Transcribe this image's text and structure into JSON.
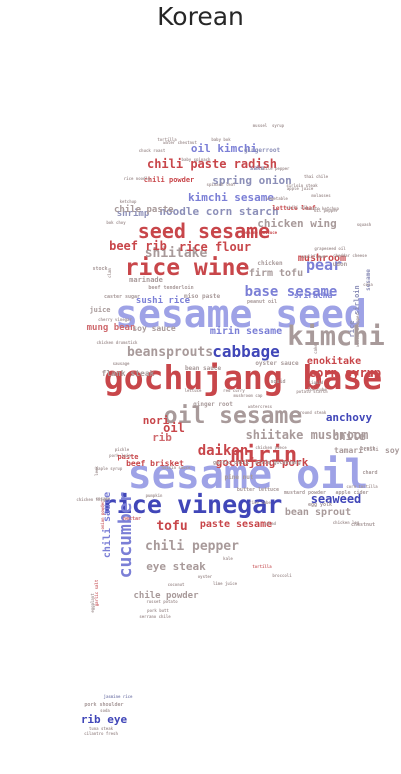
{
  "chart_data": {
    "type": "wordcloud",
    "title": "Korean",
    "colors": {
      "blue": "#7b7fd6",
      "red": "#c8464a",
      "gray": "#a89a9a",
      "dark_blue": "#4046b8",
      "light_blue": "#9ea2e6",
      "rose": "#cf6a6e",
      "slate": "#8c8fb8"
    },
    "words": [
      {
        "text": "sesame oil",
        "color": "light_blue",
        "weight": 100
      },
      {
        "text": "sesame seed",
        "color": "light_blue",
        "weight": 92
      },
      {
        "text": "gochujang base",
        "color": "red",
        "weight": 86
      },
      {
        "text": "rice vinegar",
        "color": "dark_blue",
        "weight": 68
      },
      {
        "text": "oil sesame",
        "color": "gray",
        "weight": 60
      },
      {
        "text": "rice wine",
        "color": "red",
        "weight": 58
      },
      {
        "text": "kimchi",
        "color": "gray",
        "weight": 56
      },
      {
        "text": "seed sesame",
        "color": "red",
        "weight": 50
      },
      {
        "text": "mirin",
        "color": "red",
        "weight": 50
      },
      {
        "text": "cucumber",
        "color": "blue",
        "weight": 44
      },
      {
        "text": "cabbage",
        "color": "dark_blue",
        "weight": 40
      },
      {
        "text": "base sesame",
        "color": "blue",
        "weight": 40
      },
      {
        "text": "beansprouts",
        "color": "gray",
        "weight": 36
      },
      {
        "text": "pear",
        "color": "blue",
        "weight": 38
      },
      {
        "text": "daikon",
        "color": "red",
        "weight": 34
      },
      {
        "text": "shiitake mushroom",
        "color": "gray",
        "weight": 33
      },
      {
        "text": "shiitake",
        "color": "gray",
        "weight": 33
      },
      {
        "text": "tofu",
        "color": "red",
        "weight": 32
      },
      {
        "text": "chili pepper",
        "color": "gray",
        "weight": 32
      },
      {
        "text": "beef rib",
        "color": "red",
        "weight": 31
      },
      {
        "text": "rice flour",
        "color": "red",
        "weight": 31
      },
      {
        "text": "corn syrup",
        "color": "red",
        "weight": 30
      },
      {
        "text": "gochujang pork",
        "color": "red",
        "weight": 30
      },
      {
        "text": "chili paste radish",
        "color": "red",
        "weight": 29
      },
      {
        "text": "seaweed",
        "color": "dark_blue",
        "weight": 29
      },
      {
        "text": "firm tofu",
        "color": "gray",
        "weight": 28
      },
      {
        "text": "noodle corn starch",
        "color": "slate",
        "weight": 27
      },
      {
        "text": "spring onion",
        "color": "slate",
        "weight": 27
      },
      {
        "text": "kimchi sesame",
        "color": "blue",
        "weight": 26
      },
      {
        "text": "oil kimchi",
        "color": "blue",
        "weight": 26
      },
      {
        "text": "mushroom",
        "color": "red",
        "weight": 26
      },
      {
        "text": "eye steak",
        "color": "gray",
        "weight": 26
      },
      {
        "text": "anchovy",
        "color": "dark_blue",
        "weight": 26
      },
      {
        "text": "rib eye",
        "color": "dark_blue",
        "weight": 25
      },
      {
        "text": "chicken wing",
        "color": "gray",
        "weight": 25
      },
      {
        "text": "enokitake",
        "color": "red",
        "weight": 24
      },
      {
        "text": "chili sauce",
        "color": "blue",
        "weight": 24
      },
      {
        "text": "mirin sesame",
        "color": "blue",
        "weight": 24
      },
      {
        "text": "oil",
        "color": "red",
        "weight": 24
      },
      {
        "text": "nori",
        "color": "red",
        "weight": 24
      },
      {
        "text": "rib",
        "color": "rose",
        "weight": 24
      },
      {
        "text": "chile",
        "color": "gray",
        "weight": 24
      },
      {
        "text": "bean sprout",
        "color": "gray",
        "weight": 22
      },
      {
        "text": "paste sesame",
        "color": "red",
        "weight": 22
      },
      {
        "text": "chile powder",
        "color": "gray",
        "weight": 22
      },
      {
        "text": "shrimp",
        "color": "slate",
        "weight": 22
      },
      {
        "text": "chile paste",
        "color": "gray",
        "weight": 20
      },
      {
        "text": "sushi rice",
        "color": "blue",
        "weight": 20
      },
      {
        "text": "mung bean",
        "color": "rose",
        "weight": 20
      },
      {
        "text": "beef brisket",
        "color": "red",
        "weight": 19
      },
      {
        "text": "flank steak",
        "color": "gray",
        "weight": 19
      },
      {
        "text": "soy sauce",
        "color": "gray",
        "weight": 19
      },
      {
        "text": "tamari",
        "color": "gray",
        "weight": 18
      },
      {
        "text": "soy",
        "color": "gray",
        "weight": 18
      },
      {
        "text": "sriracha",
        "color": "blue",
        "weight": 18
      },
      {
        "text": "marinade",
        "color": "gray",
        "weight": 17
      },
      {
        "text": "juice",
        "color": "gray",
        "weight": 17
      },
      {
        "text": "sirloin",
        "color": "slate",
        "weight": 16
      },
      {
        "text": "rice",
        "color": "slate",
        "weight": 16
      },
      {
        "text": "chili powder",
        "color": "red",
        "weight": 16
      },
      {
        "text": "paste",
        "color": "red",
        "weight": 16
      },
      {
        "text": "udon",
        "color": "gray",
        "weight": 14
      },
      {
        "text": "sesame",
        "color": "slate",
        "weight": 14
      },
      {
        "text": "lettuce leaf",
        "color": "red",
        "weight": 14
      },
      {
        "text": "chicken",
        "color": "gray",
        "weight": 14
      },
      {
        "text": "sake",
        "color": "slate",
        "weight": 14
      },
      {
        "text": "gingerroot",
        "color": "slate",
        "weight": 13
      },
      {
        "text": "oyster sauce",
        "color": "gray",
        "weight": 13
      },
      {
        "text": "bean sauce",
        "color": "gray",
        "weight": 13
      },
      {
        "text": "miso paste",
        "color": "gray",
        "weight": 13
      },
      {
        "text": "ginger root",
        "color": "gray",
        "weight": 13
      },
      {
        "text": "pine nut",
        "color": "gray",
        "weight": 13
      },
      {
        "text": "squid",
        "color": "gray",
        "weight": 12
      },
      {
        "text": "broth",
        "color": "gray",
        "weight": 12
      },
      {
        "text": "stock",
        "color": "gray",
        "weight": 12
      },
      {
        "text": "beef tenderloin",
        "color": "gray",
        "weight": 12
      },
      {
        "text": "caster sugar",
        "color": "gray",
        "weight": 12
      },
      {
        "text": "peanut oil",
        "color": "gray",
        "weight": 12
      },
      {
        "text": "garlic chili",
        "color": "gray",
        "weight": 12
      },
      {
        "text": "mirin gochujang",
        "color": "gray",
        "weight": 12
      },
      {
        "text": "butter lettuce",
        "color": "gray",
        "weight": 12
      },
      {
        "text": "mustard powder",
        "color": "gray",
        "weight": 12
      },
      {
        "text": "apple cider",
        "color": "gray",
        "weight": 12
      },
      {
        "text": "chestnut",
        "color": "gray",
        "weight": 12
      },
      {
        "text": "chard",
        "color": "gray",
        "weight": 12
      },
      {
        "text": "chili",
        "color": "gray",
        "weight": 12
      },
      {
        "text": "egg yolk",
        "color": "gray",
        "weight": 12
      },
      {
        "text": "nectar",
        "color": "rose",
        "weight": 12
      },
      {
        "text": "kale",
        "color": "gray",
        "weight": 11
      },
      {
        "text": "tortilla",
        "color": "rose",
        "weight": 11
      },
      {
        "text": "potato starch",
        "color": "gray",
        "weight": 11
      },
      {
        "text": "ketchup",
        "color": "gray",
        "weight": 11
      },
      {
        "text": "bok choy",
        "color": "gray",
        "weight": 11
      },
      {
        "text": "vegetable",
        "color": "gray",
        "weight": 11
      },
      {
        "text": "romaine lettuce",
        "color": "red",
        "weight": 11
      },
      {
        "text": "grapeseed oil",
        "color": "gray",
        "weight": 11
      },
      {
        "text": "water chestnut",
        "color": "gray",
        "weight": 10
      },
      {
        "text": "baby bok",
        "color": "gray",
        "weight": 10
      },
      {
        "text": "mussel",
        "color": "gray",
        "weight": 10
      },
      {
        "text": "syrup",
        "color": "gray",
        "weight": 10
      },
      {
        "text": "chuck roast",
        "color": "gray",
        "weight": 10
      },
      {
        "text": "rice noodle",
        "color": "gray",
        "weight": 10
      },
      {
        "text": "baby spinach",
        "color": "gray",
        "weight": 10
      },
      {
        "text": "chile pepper",
        "color": "gray",
        "weight": 10
      },
      {
        "text": "spinach leaf",
        "color": "gray",
        "weight": 10
      },
      {
        "text": "sirloin steak",
        "color": "gray",
        "weight": 10
      },
      {
        "text": "apple juice",
        "color": "gray",
        "weight": 10
      },
      {
        "text": "molasses",
        "color": "gray",
        "weight": 10
      },
      {
        "text": "thai chile",
        "color": "gray",
        "weight": 10
      },
      {
        "text": "chili oil",
        "color": "gray",
        "weight": 10
      },
      {
        "text": "oil pepper",
        "color": "gray",
        "weight": 10
      },
      {
        "text": "cauliflower",
        "color": "gray",
        "weight": 10
      },
      {
        "text": "cheddar cheese",
        "color": "gray",
        "weight": 10
      },
      {
        "text": "lettuce",
        "color": "gray",
        "weight": 10
      },
      {
        "text": "red curry",
        "color": "gray",
        "weight": 10
      },
      {
        "text": "pickle",
        "color": "gray",
        "weight": 10
      },
      {
        "text": "pork loin",
        "color": "gray",
        "weight": 10
      },
      {
        "text": "maple syrup",
        "color": "gray",
        "weight": 10
      },
      {
        "text": "mushroom cap",
        "color": "gray",
        "weight": 10
      },
      {
        "text": "hoisin sauce",
        "color": "gray",
        "weight": 10
      },
      {
        "text": "pumpkin",
        "color": "gray",
        "weight": 10
      },
      {
        "text": "rice cube",
        "color": "gray",
        "weight": 10
      },
      {
        "text": "leek",
        "color": "gray",
        "weight": 10
      },
      {
        "text": "sesame",
        "color": "gray",
        "weight": 10
      },
      {
        "text": "chicken thigh",
        "color": "gray",
        "weight": 10
      },
      {
        "text": "onion powder",
        "color": "rose",
        "weight": 10
      },
      {
        "text": "garlic salt",
        "color": "rose",
        "weight": 10
      },
      {
        "text": "eggplant",
        "color": "gray",
        "weight": 10
      },
      {
        "text": "pork butt",
        "color": "gray",
        "weight": 10
      },
      {
        "text": "russet potato",
        "color": "gray",
        "weight": 10
      },
      {
        "text": "coconut",
        "color": "gray",
        "weight": 10
      },
      {
        "text": "oyster",
        "color": "gray",
        "weight": 10
      },
      {
        "text": "lime juice",
        "color": "gray",
        "weight": 10
      },
      {
        "text": "serrano chile",
        "color": "gray",
        "weight": 10
      },
      {
        "text": "broccoli",
        "color": "gray",
        "weight": 10
      },
      {
        "text": "chicken leg",
        "color": "gray",
        "weight": 10
      },
      {
        "text": "jasmine rice",
        "color": "slate",
        "weight": 13
      },
      {
        "text": "pork shoulder",
        "color": "gray",
        "weight": 10
      },
      {
        "text": "soda",
        "color": "gray",
        "weight": 10
      },
      {
        "text": "tuna steak",
        "color": "gray",
        "weight": 10
      },
      {
        "text": "cilantro fresh",
        "color": "gray",
        "weight": 10
      },
      {
        "text": "chicken drumstick",
        "color": "gray",
        "weight": 10
      },
      {
        "text": "sausage",
        "color": "gray",
        "weight": 10
      },
      {
        "text": "liquid",
        "color": "gray",
        "weight": 10
      },
      {
        "text": "cake",
        "color": "gray",
        "weight": 10
      },
      {
        "text": "watercress",
        "color": "gray",
        "weight": 10
      },
      {
        "text": "round steak",
        "color": "gray",
        "weight": 10
      },
      {
        "text": "wonton wrapper",
        "color": "gray",
        "weight": 10
      },
      {
        "text": "cherry vinegar",
        "color": "gray",
        "weight": 10
      },
      {
        "text": "clam",
        "color": "gray",
        "weight": 10
      },
      {
        "text": "tortilla",
        "color": "gray",
        "weight": 10
      },
      {
        "text": "cola",
        "color": "gray",
        "weight": 10
      },
      {
        "text": "squash",
        "color": "gray",
        "weight": 10
      },
      {
        "text": "tomato ketchup",
        "color": "gray",
        "weight": 10
      },
      {
        "text": "ice cube",
        "color": "gray",
        "weight": 10
      },
      {
        "text": "corn tortilla",
        "color": "gray",
        "weight": 10
      },
      {
        "text": "salad",
        "color": "gray",
        "weight": 10
      },
      {
        "text": "chicken piece",
        "color": "gray",
        "weight": 10
      }
    ]
  }
}
